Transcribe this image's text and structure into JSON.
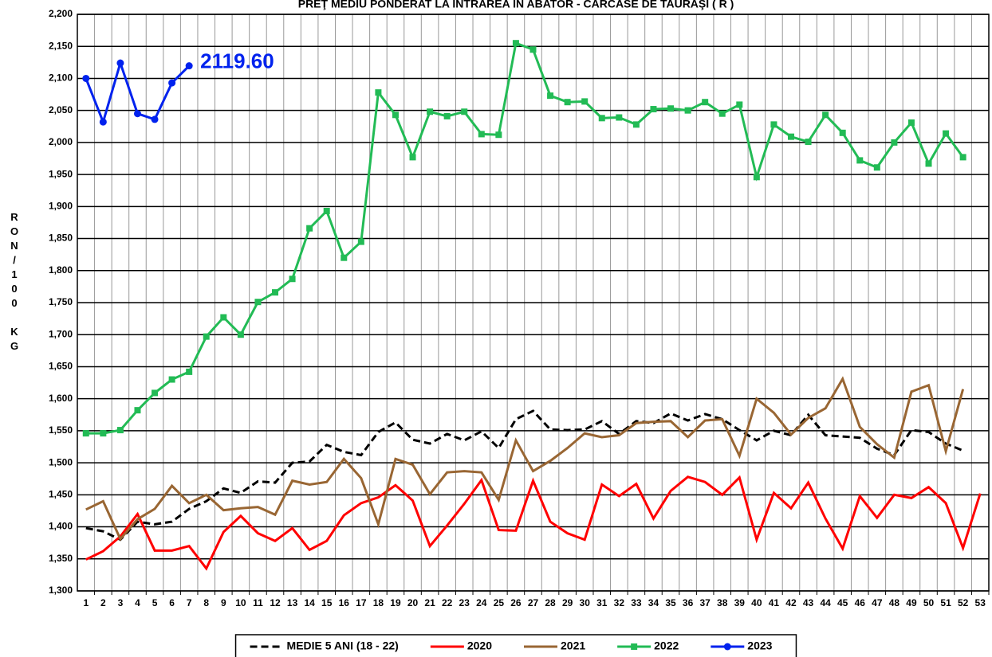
{
  "chart_data": {
    "type": "line",
    "title": "PREŢ MEDIU PONDERAT LA INTRAREA ÎN ABATOR - CARCASE DE TAURAŞI ( R )",
    "y_label": "RON/100 KG",
    "categories": [
      1,
      2,
      3,
      4,
      5,
      6,
      7,
      8,
      9,
      10,
      11,
      12,
      13,
      14,
      15,
      16,
      17,
      18,
      19,
      20,
      21,
      22,
      23,
      24,
      25,
      26,
      27,
      28,
      29,
      30,
      31,
      32,
      33,
      34,
      35,
      36,
      37,
      38,
      39,
      40,
      41,
      42,
      43,
      44,
      45,
      46,
      47,
      48,
      49,
      50,
      51,
      52,
      53
    ],
    "ylim": [
      1300,
      2200
    ],
    "yticks": [
      {
        "value": 1300,
        "label": "1,300"
      },
      {
        "value": 1350,
        "label": "1,350"
      },
      {
        "value": 1400,
        "label": "1,400"
      },
      {
        "value": 1450,
        "label": "1,450"
      },
      {
        "value": 1500,
        "label": "1,500"
      },
      {
        "value": 1550,
        "label": "1,550"
      },
      {
        "value": 1600,
        "label": "1,600"
      },
      {
        "value": 1650,
        "label": "1,650"
      },
      {
        "value": 1700,
        "label": "1,700"
      },
      {
        "value": 1750,
        "label": "1,750"
      },
      {
        "value": 1800,
        "label": "1,800"
      },
      {
        "value": 1850,
        "label": "1,850"
      },
      {
        "value": 1900,
        "label": "1,900"
      },
      {
        "value": 1950,
        "label": "1,950"
      },
      {
        "value": 2000,
        "label": "2,000"
      },
      {
        "value": 2050,
        "label": "2,050"
      },
      {
        "value": 2100,
        "label": "2,100"
      },
      {
        "value": 2150,
        "label": "2,150"
      },
      {
        "value": 2200,
        "label": "2,200"
      }
    ],
    "grid": true,
    "legend": "bottom",
    "series": [
      {
        "name": "MEDIE 5 ANI (18 - 22)",
        "color": "#000000",
        "dashed": true,
        "values": [
          1398,
          1393,
          1380,
          1408,
          1404,
          1408,
          1428,
          1440,
          1460,
          1453,
          1471,
          1469,
          1500,
          1502,
          1528,
          1517,
          1512,
          1548,
          1563,
          1536,
          1530,
          1545,
          1535,
          1549,
          1523,
          1568,
          1581,
          1552,
          1551,
          1552,
          1565,
          1545,
          1565,
          1562,
          1577,
          1566,
          1576,
          1568,
          1551,
          1535,
          1550,
          1543,
          1575,
          1543,
          1541,
          1539,
          1522,
          1512,
          1551,
          1548,
          1530,
          1519,
          null
        ]
      },
      {
        "name": "2020",
        "color": "#ff0000",
        "values": [
          1349,
          1362,
          1385,
          1420,
          1363,
          1363,
          1370,
          1335,
          1392,
          1417,
          1390,
          1378,
          1398,
          1364,
          1378,
          1418,
          1437,
          1446,
          1465,
          1441,
          1370,
          1402,
          1436,
          1473,
          1395,
          1394,
          1472,
          1408,
          1390,
          1380,
          1466,
          1448,
          1467,
          1413,
          1456,
          1478,
          1470,
          1450,
          1477,
          1380,
          1453,
          1429,
          1469,
          1413,
          1366,
          1448,
          1414,
          1450,
          1445,
          1462,
          1437,
          1367,
          1452
        ]
      },
      {
        "name": "2021",
        "color": "#996633",
        "values": [
          1427,
          1440,
          1381,
          1412,
          1428,
          1464,
          1437,
          1450,
          1426,
          1429,
          1431,
          1419,
          1472,
          1466,
          1470,
          1506,
          1476,
          1404,
          1506,
          1497,
          1451,
          1485,
          1487,
          1485,
          1442,
          1535,
          1487,
          1503,
          1523,
          1546,
          1540,
          1543,
          1562,
          1564,
          1565,
          1540,
          1566,
          1568,
          1511,
          1600,
          1578,
          1544,
          1570,
          1585,
          1631,
          1556,
          1529,
          1508,
          1611,
          1621,
          1518,
          1615,
          null
        ]
      },
      {
        "name": "2022",
        "color": "#22bb55",
        "marker": "square",
        "values": [
          1546,
          1546,
          1551,
          1582,
          1609,
          1630,
          1642,
          1697,
          1727,
          1700,
          1751,
          1766,
          1787,
          1866,
          1893,
          1820,
          1845,
          2078,
          2043,
          1977,
          2048,
          2041,
          2048,
          2013,
          2012,
          2155,
          2145,
          2073,
          2063,
          2064,
          2038,
          2039,
          2028,
          2052,
          2053,
          2050,
          2063,
          2045,
          2059,
          1946,
          2028,
          2009,
          2001,
          2043,
          2015,
          1972,
          1961,
          2000,
          2031,
          1967,
          2014,
          1977,
          null
        ]
      },
      {
        "name": "2023",
        "color": "#0022ee",
        "marker": "circle",
        "values": [
          2100,
          2032,
          2124,
          2045,
          2036,
          2093,
          2119.6,
          null,
          null,
          null,
          null,
          null,
          null,
          null,
          null,
          null,
          null,
          null,
          null,
          null,
          null,
          null,
          null,
          null,
          null,
          null,
          null,
          null,
          null,
          null,
          null,
          null,
          null,
          null,
          null,
          null,
          null,
          null,
          null,
          null,
          null,
          null,
          null,
          null,
          null,
          null,
          null,
          null,
          null,
          null,
          null,
          null,
          null
        ],
        "value_labels": [
          null,
          null,
          null,
          null,
          null,
          null,
          "2119.60",
          null,
          null,
          null,
          null,
          null,
          null,
          null,
          null,
          null,
          null,
          null,
          null,
          null,
          null,
          null,
          null,
          null,
          null,
          null,
          null,
          null,
          null,
          null,
          null,
          null,
          null,
          null,
          null,
          null,
          null,
          null,
          null,
          null,
          null,
          null,
          null,
          null,
          null,
          null,
          null,
          null,
          null,
          null,
          null,
          null,
          null
        ]
      }
    ]
  }
}
